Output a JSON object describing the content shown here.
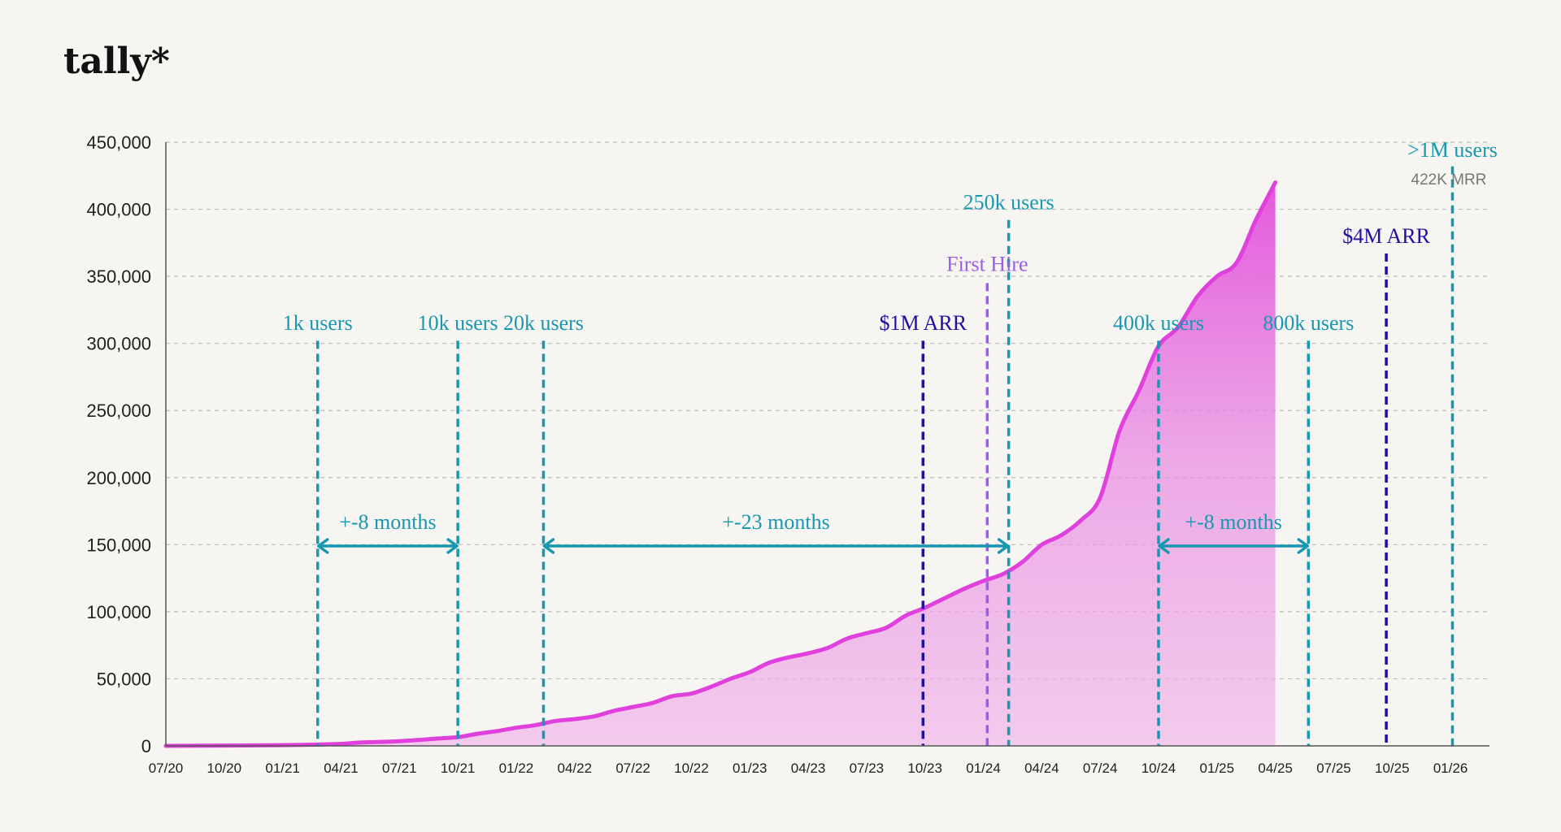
{
  "brand": {
    "name": "tally*"
  },
  "chart_data": {
    "type": "area",
    "title": "",
    "xlabel": "",
    "ylabel": "",
    "ylim": [
      0,
      450000
    ],
    "grid": true,
    "y_ticks": [
      "450,000",
      "400,000",
      "350,000",
      "300,000",
      "250,000",
      "200,000",
      "150,000",
      "100,000",
      "50,000",
      "0"
    ],
    "y_tick_values": [
      450000,
      400000,
      350000,
      300000,
      250000,
      200000,
      150000,
      100000,
      50000,
      0
    ],
    "x_ticks": [
      "07/20",
      "10/20",
      "01/21",
      "04/21",
      "07/21",
      "10/21",
      "01/22",
      "04/22",
      "07/22",
      "10/22",
      "01/23",
      "04/23",
      "07/23",
      "10/23",
      "01/24",
      "04/24",
      "07/24",
      "10/24",
      "01/25",
      "04/25",
      "07/25",
      "10/25",
      "01/26"
    ],
    "x_range_months": [
      0,
      68
    ],
    "series": [
      {
        "name": "",
        "color": "#e040dc",
        "x": [
          0,
          3,
          6,
          7.8,
          9,
          10,
          12,
          14,
          15,
          16,
          17,
          18,
          19,
          20,
          21,
          22,
          23,
          24,
          25,
          26,
          27,
          28,
          29,
          30,
          31,
          32,
          33,
          34,
          35,
          36,
          37,
          38,
          39,
          40,
          41,
          42,
          43,
          44,
          45,
          46,
          47,
          48,
          49,
          50,
          51,
          52,
          53,
          54,
          55,
          56,
          57,
          58,
          59,
          60,
          61,
          62,
          63,
          64,
          65,
          66,
          67,
          68
        ],
        "values": [
          0,
          200,
          500,
          1000,
          1500,
          2500,
          3500,
          5500,
          6500,
          9000,
          11000,
          13500,
          15500,
          18500,
          20000,
          22000,
          26000,
          29000,
          32000,
          37000,
          39000,
          44000,
          50000,
          55000,
          62000,
          66000,
          69000,
          73000,
          80000,
          84000,
          88000,
          97000,
          103000,
          110000,
          117000,
          123000,
          128000,
          137000,
          150000,
          157000,
          168000,
          185000,
          235000,
          265000,
          298000,
          312000,
          335000,
          350000,
          360000,
          392000,
          420000,
          422000,
          422000,
          422000,
          422000,
          422000,
          422000,
          422000,
          422000,
          422000,
          422000,
          422000
        ]
      }
    ],
    "series_end_index": 50,
    "annotations": [
      {
        "label": "1k users",
        "x_month": 7.8,
        "top": 302000,
        "color": "#1797b0",
        "dash": "teal",
        "label_y": 310000
      },
      {
        "label": "10k users",
        "x_month": 15.0,
        "top": 302000,
        "color": "#1797b0",
        "dash": "teal",
        "label_y": 310000
      },
      {
        "label": "20k users",
        "x_month": 19.4,
        "top": 302000,
        "color": "#1797b0",
        "dash": "teal",
        "label_y": 310000
      },
      {
        "label": "$1M ARR",
        "x_month": 38.9,
        "top": 302000,
        "color": "#1e0fa6",
        "dash": "navy",
        "label_y": 310000
      },
      {
        "label": "First Hire",
        "x_month": 42.2,
        "top": 345000,
        "color": "#9b5de5",
        "dash": "purple",
        "label_y": 354000
      },
      {
        "label": "250k users",
        "x_month": 43.3,
        "top": 392000,
        "color": "#1797b0",
        "dash": "teal",
        "label_y": 400000
      },
      {
        "label": "400k users",
        "x_month": 51.0,
        "top": 302000,
        "color": "#1797b0",
        "dash": "teal",
        "label_y": 310000
      },
      {
        "label": "800k users",
        "x_month": 58.7,
        "top": 302000,
        "color": "#1797b0",
        "dash": "teal",
        "label_y": 310000
      },
      {
        "label": "$4M ARR",
        "x_month": 62.7,
        "top": 367000,
        "color": "#1e0fa6",
        "dash": "navy",
        "label_y": 375000
      },
      {
        "label": ">1M users",
        "x_month": 66.1,
        "top": 432000,
        "color": "#1797b0",
        "dash": "teal",
        "label_y": 439000
      }
    ],
    "intervals": [
      {
        "label": "+-8 months",
        "from_month": 7.8,
        "to_month": 15.0,
        "y": 149000,
        "color": "#1797b0"
      },
      {
        "label": "+-23 months",
        "from_month": 19.4,
        "to_month": 43.3,
        "y": 149000,
        "color": "#1797b0"
      },
      {
        "label": "+-8 months",
        "from_month": 51.0,
        "to_month": 58.7,
        "y": 149000,
        "color": "#1797b0"
      }
    ],
    "end_label": "422K MRR",
    "end_label_value": 422000
  }
}
